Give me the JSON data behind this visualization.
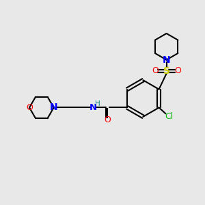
{
  "bg_color": "#e8e8e8",
  "bond_color": "#000000",
  "N_color": "#0000ff",
  "O_color": "#ff0000",
  "S_color": "#cccc00",
  "Cl_color": "#00bb00",
  "H_color": "#008888",
  "figsize": [
    3.0,
    3.0
  ],
  "dpi": 100,
  "xlim": [
    0,
    10
  ],
  "ylim": [
    0,
    10
  ]
}
